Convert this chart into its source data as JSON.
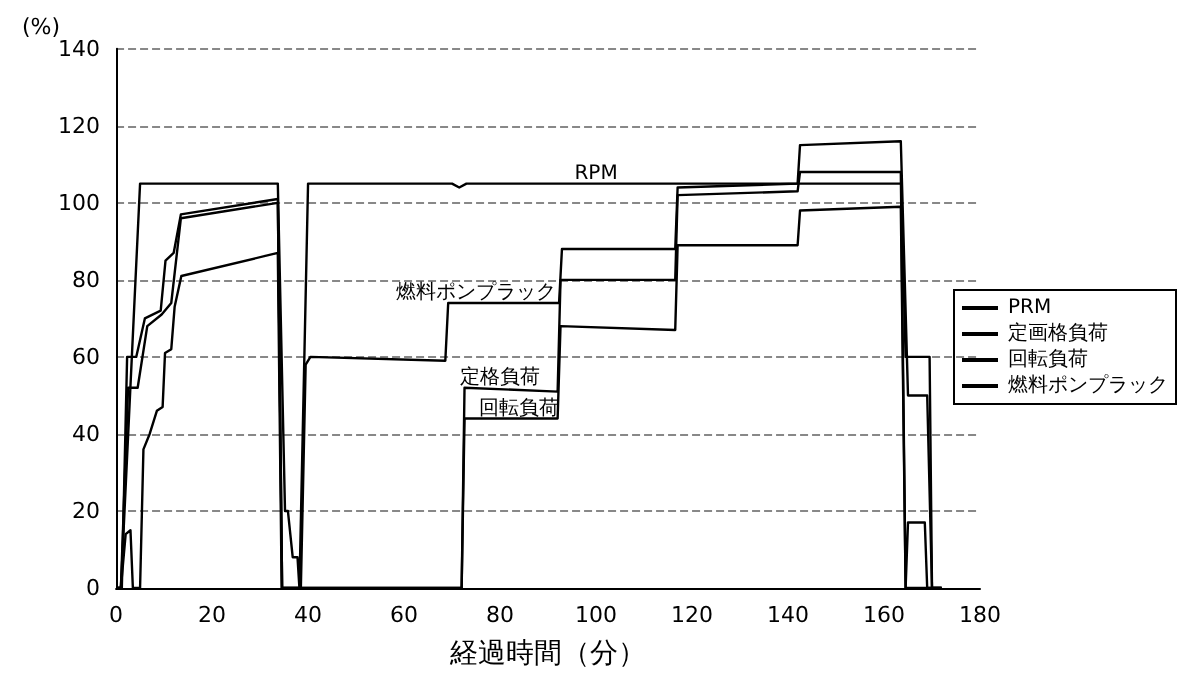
{
  "chart_data": {
    "type": "line",
    "xlabel": "経過時間（分）",
    "ylabel": "(%)",
    "xlim": [
      0,
      180
    ],
    "xticks": [
      0,
      20,
      40,
      60,
      80,
      100,
      120,
      140,
      160,
      180
    ],
    "ylim": [
      0,
      140
    ],
    "yticks": [
      0,
      20,
      40,
      60,
      80,
      100,
      120,
      140
    ],
    "grid": "y",
    "legend": "right",
    "marker": "none",
    "line_style": "solid",
    "series": [
      {
        "name": "PRM",
        "color": "#000000",
        "x": [
          0,
          1,
          5,
          33.7,
          35.2,
          35.8,
          36.8,
          37.8,
          38.2,
          40,
          70,
          71.5,
          73,
          120,
          163.6,
          164.5,
          169.5,
          170,
          172
        ],
        "values": [
          0,
          0,
          105,
          105,
          20,
          20,
          8,
          8,
          0,
          105,
          105,
          104,
          105,
          105,
          105,
          60,
          60,
          0,
          0
        ]
      },
      {
        "name": "定画格負荷",
        "color": "#000000",
        "x": [
          0,
          1,
          2.5,
          4.5,
          6.5,
          9.5,
          11.5,
          13.5,
          33.7,
          34.6,
          72,
          72.6,
          92,
          92.6,
          116.5,
          117,
          142,
          142.5,
          163.5,
          164.5,
          165,
          168.5,
          169,
          172
        ],
        "values": [
          0,
          0,
          52,
          52,
          68,
          71,
          74,
          96,
          100,
          0,
          0,
          52,
          51,
          80,
          80,
          102,
          103,
          108,
          108,
          0,
          17,
          17,
          0,
          0
        ]
      },
      {
        "name": "回転負荷",
        "color": "#000000",
        "x": [
          0,
          1,
          2,
          3,
          3.5,
          5,
          5.7,
          7,
          8.5,
          9.7,
          10.2,
          11.5,
          12.2,
          13.6,
          33.7,
          34.5,
          72,
          72.6,
          92,
          92.6,
          116.5,
          117,
          142,
          142.5,
          163.5,
          164.5,
          172
        ],
        "values": [
          0,
          0,
          14,
          15,
          0,
          0,
          36,
          40,
          46,
          47,
          61,
          62,
          73,
          81,
          87,
          0,
          0,
          44,
          44,
          68,
          67,
          89,
          89,
          98,
          99,
          0,
          0
        ]
      },
      {
        "name": "燃料ポンプラック",
        "color": "#000000",
        "x": [
          0,
          1.2,
          2.3,
          4.2,
          6,
          9.3,
          10.3,
          12,
          13.5,
          33.7,
          34.6,
          38.5,
          39.5,
          40.5,
          68.6,
          69.2,
          92.3,
          92.9,
          116.5,
          117,
          142,
          142.5,
          163.5,
          165,
          169,
          170,
          172
        ],
        "values": [
          0,
          0,
          60,
          60,
          70,
          72,
          85,
          87,
          97,
          101,
          0,
          0,
          58,
          60,
          59,
          74,
          74,
          88,
          88,
          104,
          105,
          115,
          116,
          50,
          50,
          0,
          0
        ]
      }
    ],
    "annotations": [
      {
        "text": "RPM",
        "x": 100,
        "y": 105
      },
      {
        "text": "燃料ポンプラック",
        "x": 75,
        "y": 74
      },
      {
        "text": "定格負荷",
        "x": 80,
        "y": 52
      },
      {
        "text": "回転負荷",
        "x": 84,
        "y": 44
      }
    ]
  }
}
